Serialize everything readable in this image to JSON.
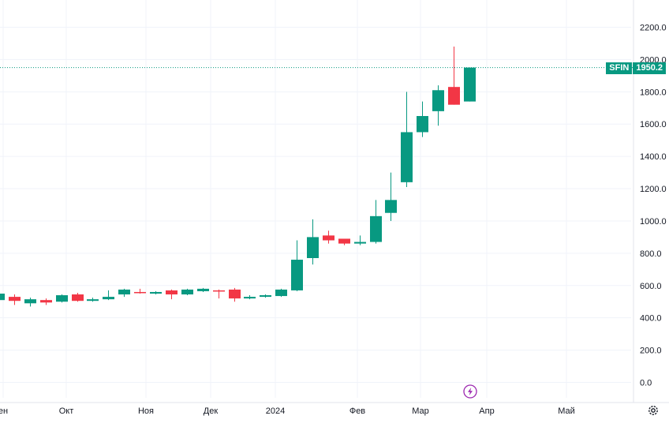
{
  "symbol": "SFIN",
  "last_price_label": "1950.2",
  "colors": {
    "up": "#089981",
    "down": "#f23645",
    "grid": "#f0f3fa",
    "text": "#131722",
    "last_line": "#089981"
  },
  "icons": {
    "event": "lightning-icon",
    "settings": "gear-icon"
  },
  "chart_data": {
    "type": "candlestick",
    "timeframe": "weekly",
    "x_tick_labels": [
      "ен",
      "Окт",
      "Ноя",
      "Дек",
      "2024",
      "Фев",
      "Мар",
      "Апр",
      "Май"
    ],
    "y_tick_labels": [
      "0.0",
      "200.0",
      "400.0",
      "600.0",
      "800.0",
      "1000.0",
      "1200.0",
      "1400.0",
      "1600.0",
      "1800.0",
      "2000.0",
      "2200.0"
    ],
    "ylim": [
      -60,
      2300
    ],
    "last_price": 1950.2,
    "candles": [
      {
        "o": 510,
        "h": 560,
        "l": 495,
        "c": 550
      },
      {
        "o": 530,
        "h": 545,
        "l": 480,
        "c": 505
      },
      {
        "o": 490,
        "h": 525,
        "l": 470,
        "c": 515
      },
      {
        "o": 510,
        "h": 520,
        "l": 480,
        "c": 495
      },
      {
        "o": 500,
        "h": 545,
        "l": 495,
        "c": 540
      },
      {
        "o": 545,
        "h": 555,
        "l": 500,
        "c": 505
      },
      {
        "o": 505,
        "h": 525,
        "l": 500,
        "c": 515
      },
      {
        "o": 515,
        "h": 570,
        "l": 510,
        "c": 530
      },
      {
        "o": 545,
        "h": 580,
        "l": 530,
        "c": 575
      },
      {
        "o": 560,
        "h": 580,
        "l": 550,
        "c": 555
      },
      {
        "o": 550,
        "h": 565,
        "l": 545,
        "c": 560
      },
      {
        "o": 570,
        "h": 575,
        "l": 515,
        "c": 545
      },
      {
        "o": 545,
        "h": 580,
        "l": 540,
        "c": 575
      },
      {
        "o": 565,
        "h": 585,
        "l": 560,
        "c": 580
      },
      {
        "o": 570,
        "h": 575,
        "l": 520,
        "c": 565
      },
      {
        "o": 575,
        "h": 585,
        "l": 500,
        "c": 520
      },
      {
        "o": 520,
        "h": 540,
        "l": 515,
        "c": 530
      },
      {
        "o": 530,
        "h": 545,
        "l": 525,
        "c": 540
      },
      {
        "o": 535,
        "h": 580,
        "l": 530,
        "c": 575
      },
      {
        "o": 570,
        "h": 880,
        "l": 565,
        "c": 760
      },
      {
        "o": 770,
        "h": 1010,
        "l": 730,
        "c": 900
      },
      {
        "o": 910,
        "h": 940,
        "l": 860,
        "c": 880
      },
      {
        "o": 890,
        "h": 890,
        "l": 850,
        "c": 860
      },
      {
        "o": 860,
        "h": 910,
        "l": 850,
        "c": 870
      },
      {
        "o": 870,
        "h": 1130,
        "l": 860,
        "c": 1030
      },
      {
        "o": 1050,
        "h": 1300,
        "l": 1000,
        "c": 1130
      },
      {
        "o": 1240,
        "h": 1800,
        "l": 1210,
        "c": 1550
      },
      {
        "o": 1550,
        "h": 1740,
        "l": 1520,
        "c": 1650
      },
      {
        "o": 1680,
        "h": 1840,
        "l": 1590,
        "c": 1810
      },
      {
        "o": 1830,
        "h": 2080,
        "l": 1720,
        "c": 1720
      },
      {
        "o": 1740,
        "h": 1950,
        "l": 1740,
        "c": 1950.2
      }
    ]
  }
}
